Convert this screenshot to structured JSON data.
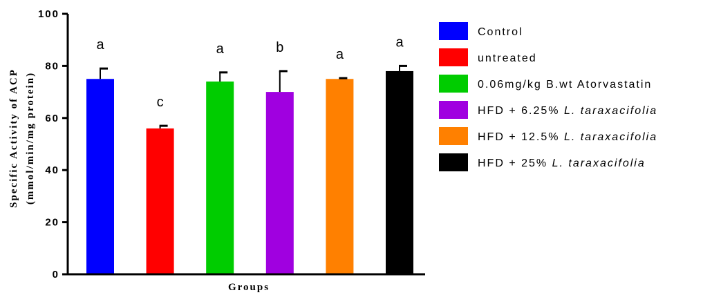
{
  "chart_data": {
    "type": "bar",
    "xlabel": "Groups",
    "ylabel_line1": "Specific Activity of ACP",
    "ylabel_line2": "(mmol/min/mg protein)",
    "ylim": [
      0,
      100
    ],
    "yticks": [
      0,
      20,
      40,
      60,
      80,
      100
    ],
    "ytick_labels": [
      "0",
      "20",
      "40",
      "60",
      "80",
      "100"
    ],
    "grid": false,
    "legend_position": "right",
    "series": [
      {
        "name": "Control",
        "legend_plain": "Control",
        "legend_italic": "",
        "value": 75,
        "error": 4,
        "significance": "a",
        "color": "#0000ff"
      },
      {
        "name": "untreated",
        "legend_plain": "untreated",
        "legend_italic": "",
        "value": 56,
        "error": 1,
        "significance": "c",
        "color": "#ff0000"
      },
      {
        "name": "0.06mg/kg B.wt Atorvastatin",
        "legend_plain": "0.06mg/kg B.wt Atorvastatin",
        "legend_italic": "",
        "value": 74,
        "error": 3.5,
        "significance": "a",
        "color": "#00cc00"
      },
      {
        "name": "HFD + 6.25% L. taraxacifolia",
        "legend_plain": "HFD + 6.25% ",
        "legend_italic": "L. taraxacifolia",
        "value": 70,
        "error": 8,
        "significance": "b",
        "color": "#a000e0"
      },
      {
        "name": "HFD + 12.5% L. taraxacifolia",
        "legend_plain": "HFD + 12.5% ",
        "legend_italic": "L. taraxacifolia",
        "value": 75,
        "error": 0.3,
        "significance": "a",
        "color": "#ff8000"
      },
      {
        "name": "HFD + 25% L. taraxacifolia",
        "legend_plain": "HFD + 25% ",
        "legend_italic": "L. taraxacifolia",
        "value": 78,
        "error": 2,
        "significance": "a",
        "color": "#000000"
      }
    ]
  }
}
